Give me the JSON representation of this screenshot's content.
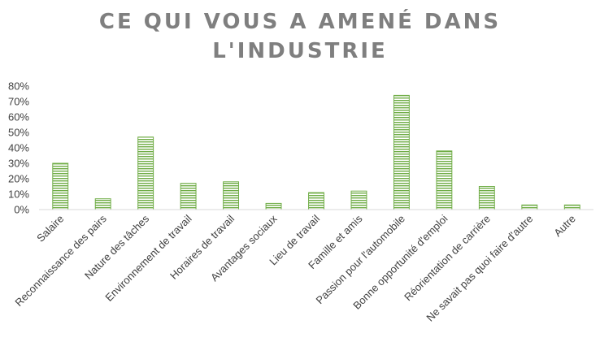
{
  "chart_data": {
    "type": "bar",
    "title_line1": "CE QUI VOUS A AMENÉ DANS",
    "title_line2": "L'INDUSTRIE",
    "categories": [
      "Salaire",
      "Reconnaissance des pairs",
      "Nature des tâches",
      "Environnement de travail",
      "Horaires de travail",
      "Avantages sociaux",
      "Lieu de travail",
      "Famille et amis",
      "Passion pour l'automobile",
      "Bonne opportunité d'emploi",
      "Réorientation de carrière",
      "Ne savait pas quoi faire d'autre",
      "Autre"
    ],
    "values": [
      30,
      7,
      47,
      17,
      18,
      4,
      11,
      12,
      74,
      38,
      15,
      3,
      3
    ],
    "ylim": [
      0,
      80
    ],
    "yticks": [
      "0%",
      "10%",
      "20%",
      "30%",
      "40%",
      "50%",
      "60%",
      "70%",
      "80%"
    ],
    "grid": false,
    "legend": false,
    "bar_color": "#70ad47",
    "bar_fill_color": "#e2efd9"
  }
}
